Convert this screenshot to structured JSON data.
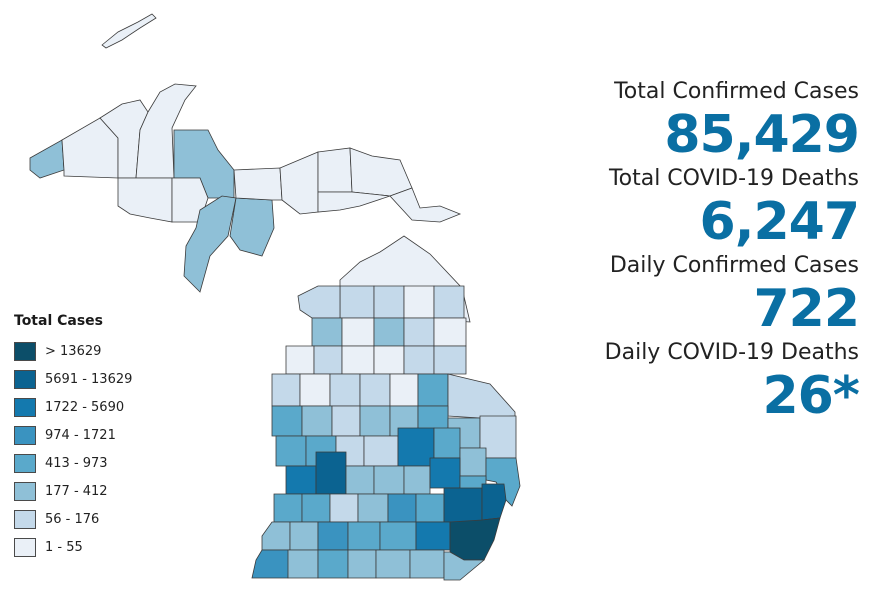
{
  "colors": {
    "c1": "#eaf0f7",
    "c2": "#c4d9ea",
    "c3": "#8fc0d7",
    "c4": "#5aa9cb",
    "c5": "#3a93c0",
    "c6": "#1479ae",
    "c7": "#0b6391",
    "c8": "#0c4e69",
    "border": "#3b3b3b",
    "accent": "#0a6fa3"
  },
  "legend": {
    "title": "Total Cases",
    "items": [
      {
        "label": "> 13629",
        "color": "#0c4e69"
      },
      {
        "label": "5691 - 13629",
        "color": "#0b6391"
      },
      {
        "label": "1722 - 5690",
        "color": "#1479ae"
      },
      {
        "label": "974 - 1721",
        "color": "#3a93c0"
      },
      {
        "label": "413 - 973",
        "color": "#5aa9cb"
      },
      {
        "label": "177 - 412",
        "color": "#8fc0d7"
      },
      {
        "label": "56 - 176",
        "color": "#c4d9ea"
      },
      {
        "label": "1 - 55",
        "color": "#eaf0f7"
      }
    ]
  },
  "stats": [
    {
      "label": "Total Confirmed Cases",
      "value": "85,429"
    },
    {
      "label": "Total COVID-19 Deaths",
      "value": "6,247"
    },
    {
      "label": "Daily Confirmed Cases",
      "value": "722"
    },
    {
      "label": "Daily COVID-19 Deaths",
      "value": "26*"
    }
  ]
}
